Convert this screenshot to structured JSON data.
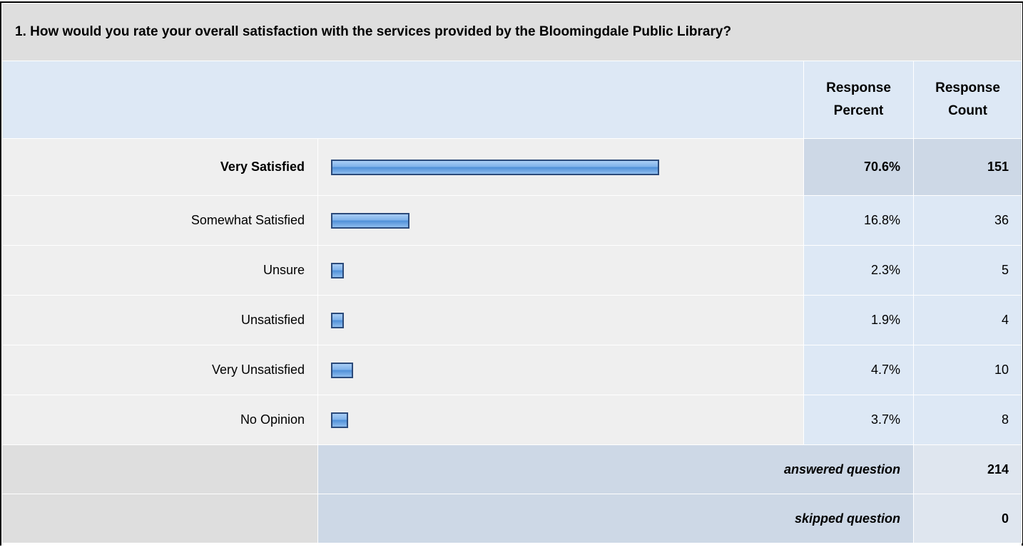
{
  "question": "1. How would you rate your overall satisfaction with the services provided by the Bloomingdale Public Library?",
  "header": {
    "percent": "Response Percent",
    "count": "Response Count"
  },
  "rows": [
    {
      "label": "Very Satisfied",
      "percent": 70.6,
      "percent_label": "70.6%",
      "count": 151
    },
    {
      "label": "Somewhat Satisfied",
      "percent": 16.8,
      "percent_label": "16.8%",
      "count": 36
    },
    {
      "label": "Unsure",
      "percent": 2.3,
      "percent_label": "2.3%",
      "count": 5
    },
    {
      "label": "Unsatisfied",
      "percent": 1.9,
      "percent_label": "1.9%",
      "count": 4
    },
    {
      "label": "Very Unsatisfied",
      "percent": 4.7,
      "percent_label": "4.7%",
      "count": 10
    },
    {
      "label": "No Opinion",
      "percent": 3.7,
      "percent_label": "3.7%",
      "count": 8
    }
  ],
  "footer": [
    {
      "label": "answered question",
      "count": 214
    },
    {
      "label": "skipped question",
      "count": 0
    }
  ]
}
